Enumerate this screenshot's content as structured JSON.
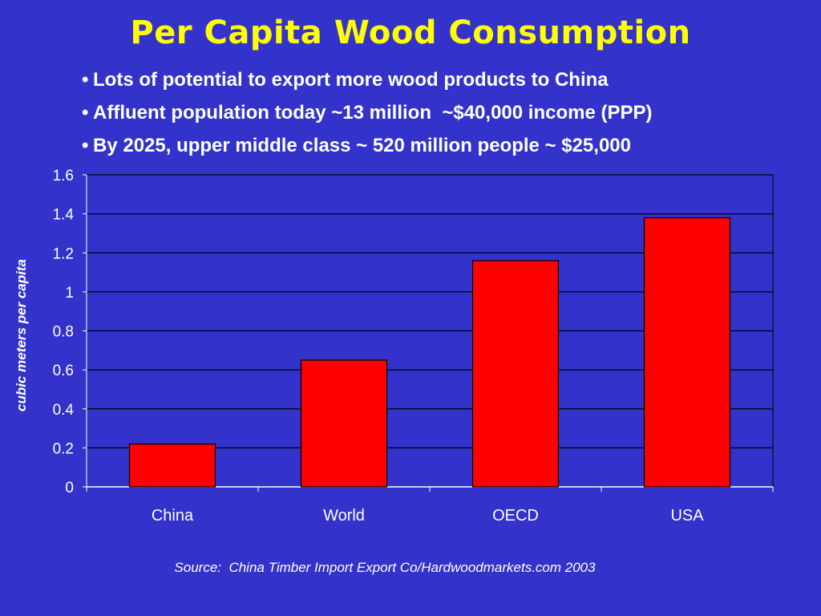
{
  "slide": {
    "title": "Per Capita Wood Consumption",
    "bullets": [
      "Lots of potential to export more wood products to China",
      "Affluent population today ~13 million  ~$40,000 income (PPP)",
      "By 2025, upper middle class ~ 520 million people ~ $25,000"
    ],
    "bullet_glyph": "•",
    "source": "Source:  China Timber Import Export Co/Hardwoodmarkets.com 2003"
  },
  "colors": {
    "background": "#3333CC",
    "title": "#FFFF00",
    "bar_fill": "#FF0000",
    "text": "#FFFFFF"
  },
  "chart_data": {
    "type": "bar",
    "title": "",
    "xlabel": "",
    "ylabel": "cubic meters per capita",
    "categories": [
      "China",
      "World",
      "OECD",
      "USA"
    ],
    "values": [
      0.22,
      0.65,
      1.16,
      1.38
    ],
    "ylim": [
      0,
      1.6
    ],
    "yticks": [
      "0",
      "0.2",
      "0.4",
      "0.6",
      "0.8",
      "1",
      "1.2",
      "1.4",
      "1.6"
    ],
    "grid": true,
    "legend": "none"
  }
}
